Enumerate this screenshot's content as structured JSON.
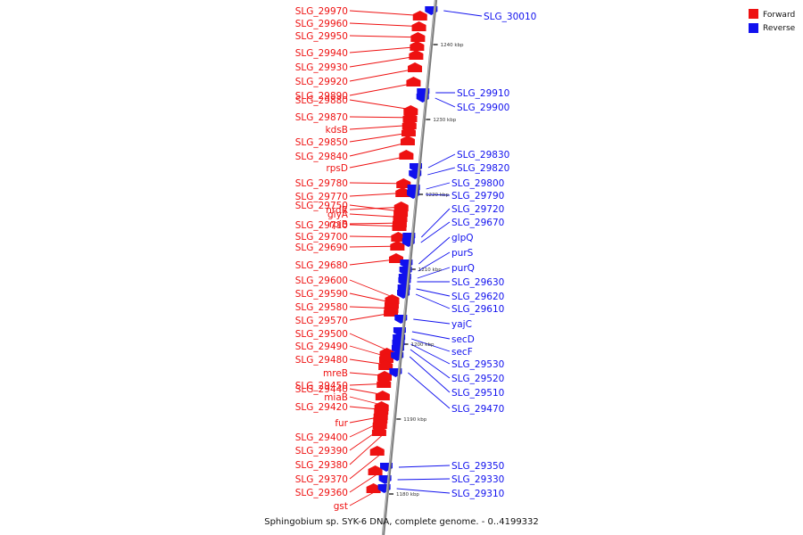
{
  "caption": "Sphingobium sp. SYK-6 DNA, complete genome. - 0..4199332",
  "legend": [
    {
      "label": "Forward",
      "color": "#ee1111"
    },
    {
      "label": "Reverse",
      "color": "#1111ee"
    }
  ],
  "colors": {
    "forward": "#ee1111",
    "reverse": "#1111ee",
    "axis": "#888888"
  },
  "ticks": [
    "1240 kbp",
    "1230 kbp",
    "1220 kbp",
    "1210 kbp",
    "1200 kbp",
    "1190 kbp",
    "1180 kbp"
  ],
  "forward_labels": [
    "SLG_29970",
    "SLG_29960",
    "SLG_29950",
    "SLG_29940",
    "SLG_29930",
    "SLG_29920",
    "SLG_29890",
    "SLG_29880",
    "SLG_29870",
    "kdsB",
    "SLG_29850",
    "SLG_29840",
    "rpsD",
    "SLG_29780",
    "SLG_29770",
    "SLG_29750",
    "nrdR",
    "glyA",
    "SLG_29710",
    "rpiB",
    "SLG_29700",
    "SLG_29690",
    "SLG_29680",
    "SLG_29600",
    "SLG_29590",
    "SLG_29580",
    "SLG_29570",
    "SLG_29500",
    "SLG_29490",
    "SLG_29480",
    "mreB",
    "SLG_29440",
    "SLG_29450",
    "miaB",
    "SLG_29420",
    "fur",
    "SLG_29400",
    "SLG_29390",
    "SLG_29380",
    "SLG_29370",
    "SLG_29360",
    "gst"
  ],
  "reverse_labels": [
    "SLG_30010",
    "SLG_29910",
    "SLG_29900",
    "SLG_29830",
    "SLG_29820",
    "SLG_29800",
    "SLG_29790",
    "SLG_29720",
    "SLG_29670",
    "glpQ",
    "purS",
    "purQ",
    "SLG_29630",
    "SLG_29620",
    "SLG_29610",
    "yajC",
    "secD",
    "secF",
    "SLG_29530",
    "SLG_29520",
    "SLG_29510",
    "SLG_29470",
    "SLG_29350",
    "SLG_29330",
    "SLG_29310"
  ]
}
